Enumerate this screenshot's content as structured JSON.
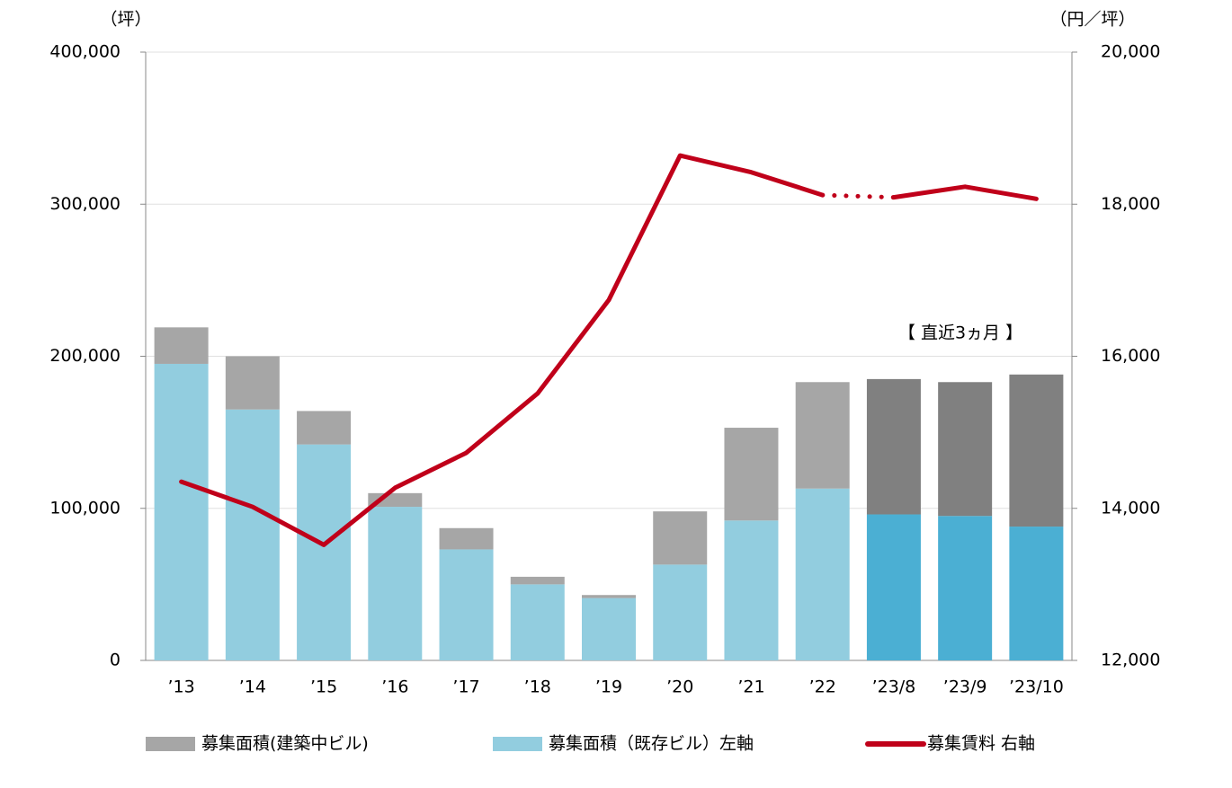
{
  "chart_data": {
    "type": "bar-line",
    "y_unit": "（坪）",
    "y2_unit": "（円／坪）",
    "annotation": "【 直近3ヵ月 】",
    "categories": [
      "’13",
      "’14",
      "’15",
      "’16",
      "’17",
      "’18",
      "’19",
      "’20",
      "’21",
      "’22",
      "’23/8",
      "’23/9",
      "’23/10"
    ],
    "recent_start": "’23/8",
    "series": [
      {
        "name": "募集面積(建築中ビル)",
        "type": "bar",
        "stack": 1,
        "color": "#a6a6a6",
        "recent_color": "#808080",
        "values": [
          24000,
          35000,
          22000,
          9000,
          14000,
          5000,
          2000,
          35000,
          61000,
          70000,
          89000,
          88000,
          100000
        ]
      },
      {
        "name": "募集面積（既存ビル）左軸",
        "type": "bar",
        "stack": 0,
        "color": "#92cddf",
        "recent_color": "#4bafd3",
        "values": [
          195000,
          165000,
          142000,
          101000,
          73000,
          50000,
          41000,
          63000,
          92000,
          113000,
          96000,
          95000,
          88000
        ]
      },
      {
        "name": "募集賃料 右軸",
        "type": "line",
        "axis": "y2",
        "color": "#c0001a",
        "values": [
          14350,
          14020,
          13520,
          14270,
          14730,
          15510,
          16740,
          18640,
          18420,
          18120,
          18090,
          18230,
          18070
        ]
      }
    ],
    "ylim": [
      0,
      400000
    ],
    "yticks": [
      0,
      {
        "value": 100000,
        "label": "100,000"
      },
      {
        "value": 200000,
        "label": "200,000"
      },
      {
        "value": 300000,
        "label": "300,000"
      },
      {
        "value": 400000,
        "label": "400,000"
      }
    ],
    "y2lim": [
      12000,
      20000
    ],
    "y2ticks": [
      {
        "value": 12000,
        "label": "12,000"
      },
      {
        "value": 14000,
        "label": "14,000"
      },
      {
        "value": 16000,
        "label": "16,000"
      },
      {
        "value": 18000,
        "label": "18,000"
      },
      {
        "value": 20000,
        "label": "20,000"
      }
    ],
    "grid": true,
    "legend": "bottom"
  }
}
